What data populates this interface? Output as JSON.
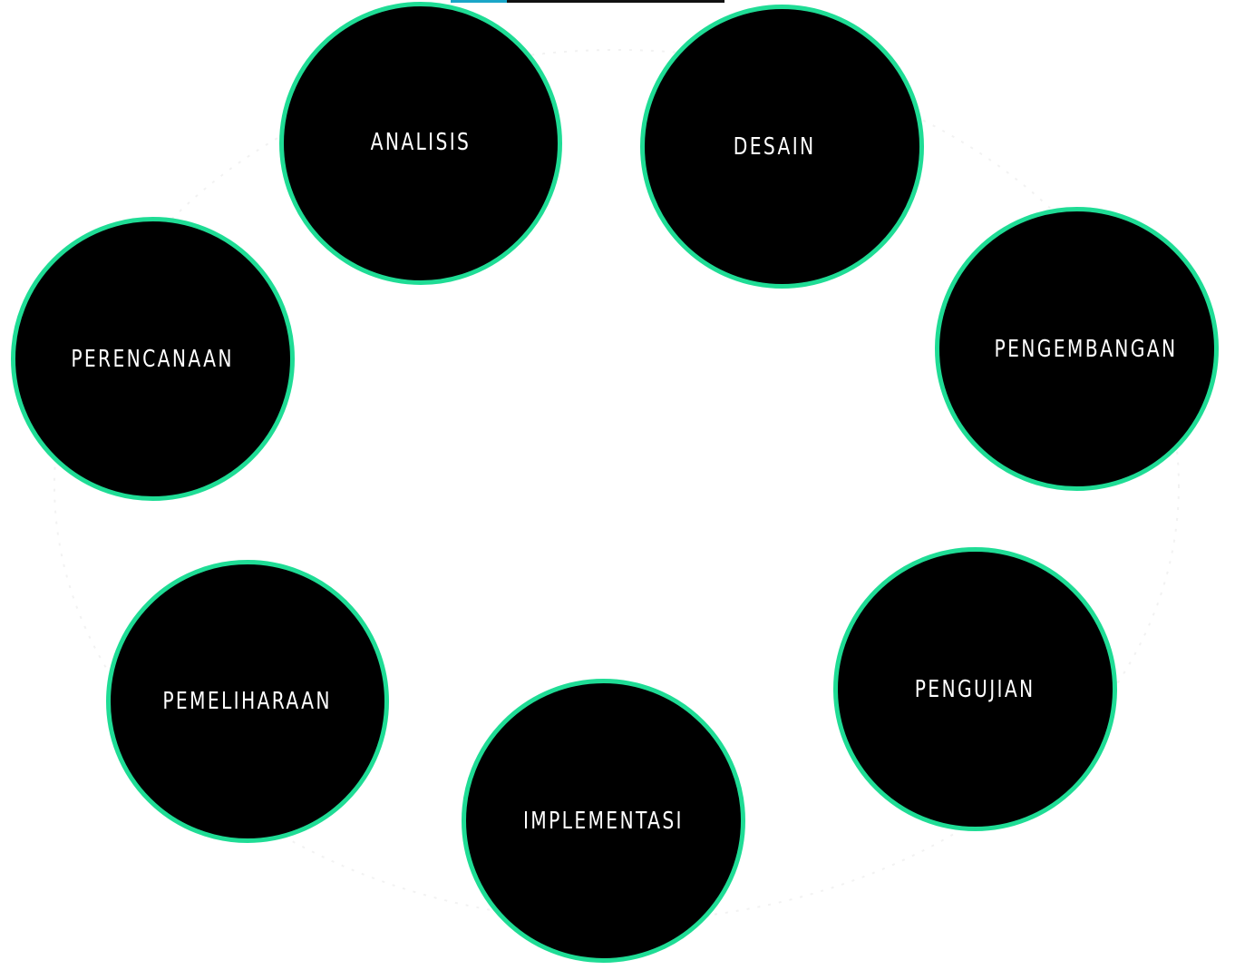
{
  "colors": {
    "node_fill": "#000000",
    "node_border": "#1fdc95",
    "label_text": "#ffffff",
    "background": "#ffffff",
    "top_bar": "#111111",
    "top_bar_accent": "#1aa6c8"
  },
  "stages": {
    "analisis": "ANALISIS",
    "desain": "DESAIN",
    "perencanaan": "PERENCANAAN",
    "pengembangan": "PENGEMBANGAN",
    "pemeliharaan": "PEMELIHARAAN",
    "pengujian": "PENGUJIAN",
    "implementasi": "IMPLEMENTASI"
  }
}
